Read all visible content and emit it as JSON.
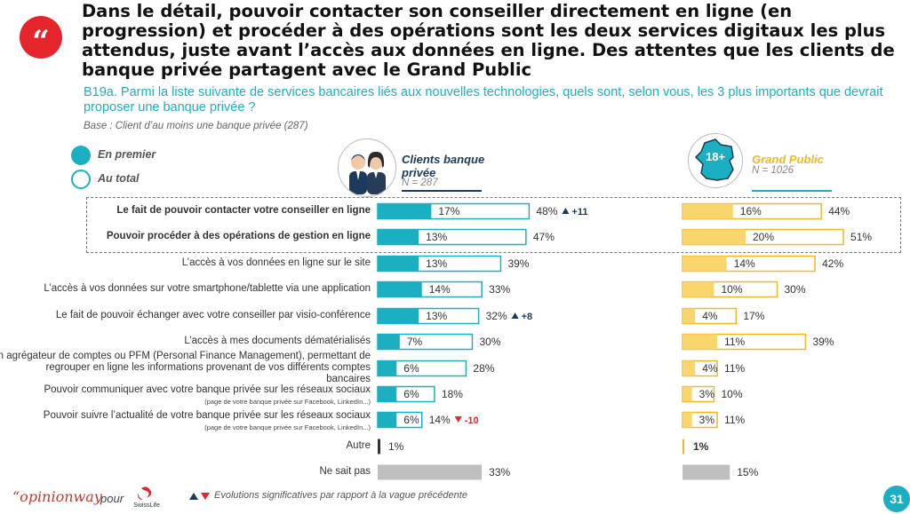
{
  "title": "Dans le détail, pouvoir contacter son conseiller directement en ligne (en progression) et procéder à des opérations sont les deux services digitaux les plus attendus, juste avant l’accès aux données en ligne. Des attentes que les clients de banque privée partagent avec le Grand Public",
  "question": "B19a. Parmi la liste suivante de services bancaires liés aux nouvelles technologies, quels sont, selon vous, les 3 plus importants que devrait proposer une banque privée ?",
  "base": "Base : Client d’au moins une banque privée (287)",
  "legend": {
    "first": "En premier",
    "total": "Au total"
  },
  "panels": {
    "private": {
      "title_line1": "Clients banque",
      "title_line2": "privée",
      "n": "N = 287"
    },
    "public": {
      "title": "Grand Public",
      "n": "N = 1026",
      "badge": "18+"
    }
  },
  "footer": {
    "brand": "“opinionway",
    "pour": "pour",
    "client_logo": "SwissLife",
    "note": "Evolutions significatives par rapport à la vague précédente",
    "page": "31"
  },
  "colors": {
    "teal": "#1cafc2",
    "yellow": "#f9d56e",
    "yellow_border": "#f2b824",
    "grey": "#bfbfbf",
    "dark": "#333333",
    "red": "#e4252b",
    "navy": "#1b3a5c"
  },
  "chart_data": {
    "type": "bar",
    "categories": [
      "Le fait de pouvoir contacter votre conseiller en ligne",
      "Pouvoir procéder à des opérations de gestion en ligne",
      "L’accès à vos données en ligne sur le site",
      "L’accès à vos données sur votre smartphone/tablette via une application",
      "Le fait de pouvoir échanger avec votre conseiller par visio-conférence",
      "L’accès à mes documents dématérialisés",
      "Un agrégateur de comptes ou PFM (Personal Finance Management), permettant de regrouper en ligne les informations provenant de vos différents comptes bancaires",
      "Pouvoir communiquer avec votre banque privée sur les réseaux sociaux",
      "Pouvoir suivre l’actualité de votre banque privée sur les réseaux sociaux",
      "Autre",
      "Ne sait pas"
    ],
    "category_lines": [
      [
        "Le fait de pouvoir contacter votre conseiller en ligne"
      ],
      [
        "Pouvoir procéder à des opérations de gestion en ligne"
      ],
      [
        "L’accès à vos données en ligne sur le site"
      ],
      [
        "L’accès à vos données sur votre smartphone/tablette via une application"
      ],
      [
        "Le fait de pouvoir échanger avec votre conseiller par visio-conférence"
      ],
      [
        "L’accès à mes documents dématérialisés"
      ],
      [
        "Un agrégateur de comptes ou PFM (Personal Finance Management), permettant de",
        "regrouper en ligne les informations provenant de vos différents comptes",
        "bancaires"
      ],
      [
        "Pouvoir communiquer avec votre banque privée sur les réseaux sociaux"
      ],
      [
        "Pouvoir suivre l’actualité de votre banque privée sur les réseaux sociaux"
      ],
      [
        "Autre"
      ],
      [
        "Ne sait pas"
      ]
    ],
    "category_notes": [
      "",
      "",
      "",
      "",
      "",
      "",
      "",
      "(page de votre banque privée sur Facebook, LinkedIn...)",
      "(page de votre banque privée sur Facebook, LinkedIn...)",
      "",
      ""
    ],
    "bold_categories": [
      0,
      1
    ],
    "series": [
      {
        "name": "Clients banque privée - En premier",
        "values": [
          17,
          13,
          13,
          14,
          13,
          7,
          6,
          6,
          6,
          null,
          null
        ]
      },
      {
        "name": "Clients banque privée - Au total",
        "values": [
          48,
          47,
          39,
          33,
          32,
          30,
          28,
          18,
          14,
          1,
          33
        ]
      },
      {
        "name": "Grand Public - En premier",
        "values": [
          16,
          20,
          14,
          10,
          4,
          11,
          4,
          3,
          3,
          null,
          null
        ]
      },
      {
        "name": "Grand Public - Au total",
        "values": [
          44,
          51,
          42,
          30,
          17,
          39,
          11,
          10,
          11,
          1,
          15
        ]
      }
    ],
    "evolutions": [
      {
        "category": 0,
        "direction": "up",
        "value": "+11"
      },
      {
        "category": 4,
        "direction": "up",
        "value": "+8"
      },
      {
        "category": 8,
        "direction": "down",
        "value": "-10"
      }
    ],
    "unit": "%",
    "xlim": [
      0,
      100
    ]
  }
}
